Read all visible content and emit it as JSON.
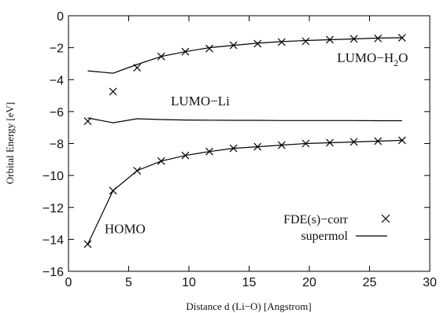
{
  "chart_data": {
    "type": "line",
    "xlabel": "Distance d (Li−O) [Angstrom]",
    "ylabel": "Orbital Energy [eV]",
    "xlim": [
      0,
      30
    ],
    "ylim": [
      -16,
      0
    ],
    "xticks": [
      "0",
      "5",
      "10",
      "15",
      "20",
      "25",
      "30"
    ],
    "yticks": [
      "0",
      "−2",
      "−4",
      "−6",
      "−8",
      "−10",
      "−12",
      "−14",
      "−16"
    ],
    "grid": false,
    "legend": {
      "placement": "bottom-right",
      "entries": [
        {
          "label": "FDE(s)−corr",
          "marker": "x"
        },
        {
          "label": "supermol",
          "marker": "line"
        }
      ]
    },
    "annotations": [
      {
        "text": "LUMO−H",
        "sub": "2",
        "text_after": "O",
        "x": 22.3,
        "y": -2.9
      },
      {
        "text": "LUMO−Li",
        "x": 8.5,
        "y": -5.6
      },
      {
        "text": "HOMO",
        "x": 3.0,
        "y": -13.6
      }
    ],
    "series": [
      {
        "kind": "markers",
        "points": [
          [
            1.6,
            -6.6
          ],
          [
            3.7,
            -4.75
          ],
          [
            5.7,
            -3.25
          ],
          [
            1.6,
            -14.3
          ],
          [
            3.7,
            -10.95
          ],
          [
            5.7,
            -9.7
          ],
          [
            7.7,
            -9.1
          ],
          [
            9.7,
            -8.75
          ],
          [
            11.7,
            -8.5
          ],
          [
            13.7,
            -8.3
          ],
          [
            15.7,
            -8.2
          ],
          [
            17.7,
            -8.1
          ],
          [
            19.7,
            -8.0
          ],
          [
            21.7,
            -7.95
          ],
          [
            23.7,
            -7.9
          ],
          [
            25.7,
            -7.85
          ],
          [
            27.7,
            -7.8
          ],
          [
            7.7,
            -2.55
          ],
          [
            9.7,
            -2.25
          ],
          [
            11.7,
            -2.05
          ],
          [
            13.7,
            -1.85
          ],
          [
            15.7,
            -1.75
          ],
          [
            17.7,
            -1.65
          ],
          [
            19.7,
            -1.6
          ],
          [
            21.7,
            -1.5
          ],
          [
            23.7,
            -1.45
          ],
          [
            25.7,
            -1.42
          ],
          [
            27.7,
            -1.38
          ]
        ]
      },
      {
        "kind": "line",
        "points": [
          [
            1.6,
            -3.45
          ],
          [
            3.7,
            -3.6
          ],
          [
            5.7,
            -3.05
          ],
          [
            7.7,
            -2.55
          ],
          [
            9.7,
            -2.25
          ],
          [
            11.7,
            -2.0
          ],
          [
            13.7,
            -1.85
          ],
          [
            15.7,
            -1.72
          ],
          [
            17.7,
            -1.62
          ],
          [
            19.7,
            -1.55
          ],
          [
            21.7,
            -1.5
          ],
          [
            23.7,
            -1.45
          ],
          [
            25.7,
            -1.4
          ],
          [
            27.7,
            -1.38
          ]
        ]
      },
      {
        "kind": "line",
        "points": [
          [
            1.6,
            -6.4
          ],
          [
            3.7,
            -6.7
          ],
          [
            5.7,
            -6.45
          ],
          [
            7.7,
            -6.5
          ],
          [
            9.7,
            -6.53
          ],
          [
            11.7,
            -6.54
          ],
          [
            13.7,
            -6.55
          ],
          [
            15.7,
            -6.55
          ],
          [
            17.7,
            -6.56
          ],
          [
            19.7,
            -6.56
          ],
          [
            21.7,
            -6.56
          ],
          [
            23.7,
            -6.56
          ],
          [
            25.7,
            -6.57
          ],
          [
            27.7,
            -6.57
          ]
        ]
      },
      {
        "kind": "line",
        "points": [
          [
            1.6,
            -14.3
          ],
          [
            3.7,
            -10.95
          ],
          [
            5.7,
            -9.7
          ],
          [
            7.7,
            -9.1
          ],
          [
            9.7,
            -8.75
          ],
          [
            11.7,
            -8.5
          ],
          [
            13.7,
            -8.3
          ],
          [
            15.7,
            -8.2
          ],
          [
            17.7,
            -8.1
          ],
          [
            19.7,
            -8.0
          ],
          [
            21.7,
            -7.95
          ],
          [
            23.7,
            -7.9
          ],
          [
            25.7,
            -7.85
          ],
          [
            27.7,
            -7.8
          ]
        ]
      }
    ]
  }
}
